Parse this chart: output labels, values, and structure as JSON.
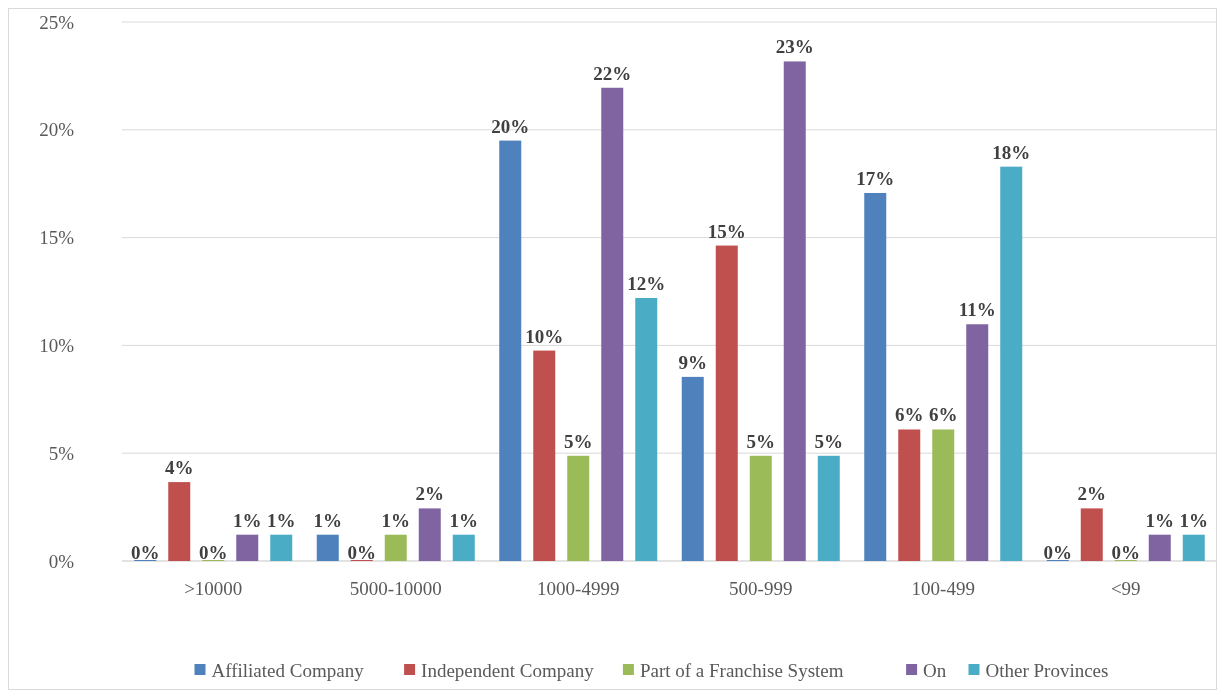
{
  "chart_data": {
    "type": "bar",
    "categories": [
      ">10000",
      "5000-10000",
      "1000-4999",
      "500-999",
      "100-499",
      "<99"
    ],
    "series": [
      {
        "name": "Affiliated Company",
        "color": "#4f81bd",
        "values": [
          0,
          1.22,
          19.5,
          8.54,
          17.07,
          0
        ],
        "value_labels": [
          "0%",
          "1%",
          "20%",
          "9%",
          "17%",
          "0%"
        ]
      },
      {
        "name": "Independent Company",
        "color": "#c0504d",
        "values": [
          3.66,
          0,
          9.76,
          14.63,
          6.1,
          2.44
        ],
        "value_labels": [
          "4%",
          "0%",
          "10%",
          "15%",
          "6%",
          "2%"
        ]
      },
      {
        "name": "Part of a Franchise System",
        "color": "#9bbb59",
        "values": [
          0,
          1.22,
          4.88,
          4.88,
          6.1,
          0
        ],
        "value_labels": [
          "0%",
          "1%",
          "5%",
          "5%",
          "6%",
          "0%"
        ]
      },
      {
        "name": "On",
        "color": "#8064a2",
        "values": [
          1.22,
          2.44,
          21.95,
          23.17,
          10.98,
          1.22
        ],
        "value_labels": [
          "1%",
          "2%",
          "22%",
          "23%",
          "11%",
          "1%"
        ]
      },
      {
        "name": "Other Provinces",
        "color": "#4bacc6",
        "values": [
          1.22,
          1.22,
          12.2,
          4.88,
          18.29,
          1.22
        ],
        "value_labels": [
          "1%",
          "1%",
          "12%",
          "5%",
          "18%",
          "1%"
        ]
      }
    ],
    "ylim": [
      0,
      25
    ],
    "yticks": [
      {
        "value": 0,
        "label": "0%"
      },
      {
        "value": 5,
        "label": "5%"
      },
      {
        "value": 10,
        "label": "10%"
      },
      {
        "value": 15,
        "label": "15%"
      },
      {
        "value": 20,
        "label": "20%"
      },
      {
        "value": 25,
        "label": "25%"
      }
    ],
    "grid": "y",
    "legend": "bottom"
  }
}
